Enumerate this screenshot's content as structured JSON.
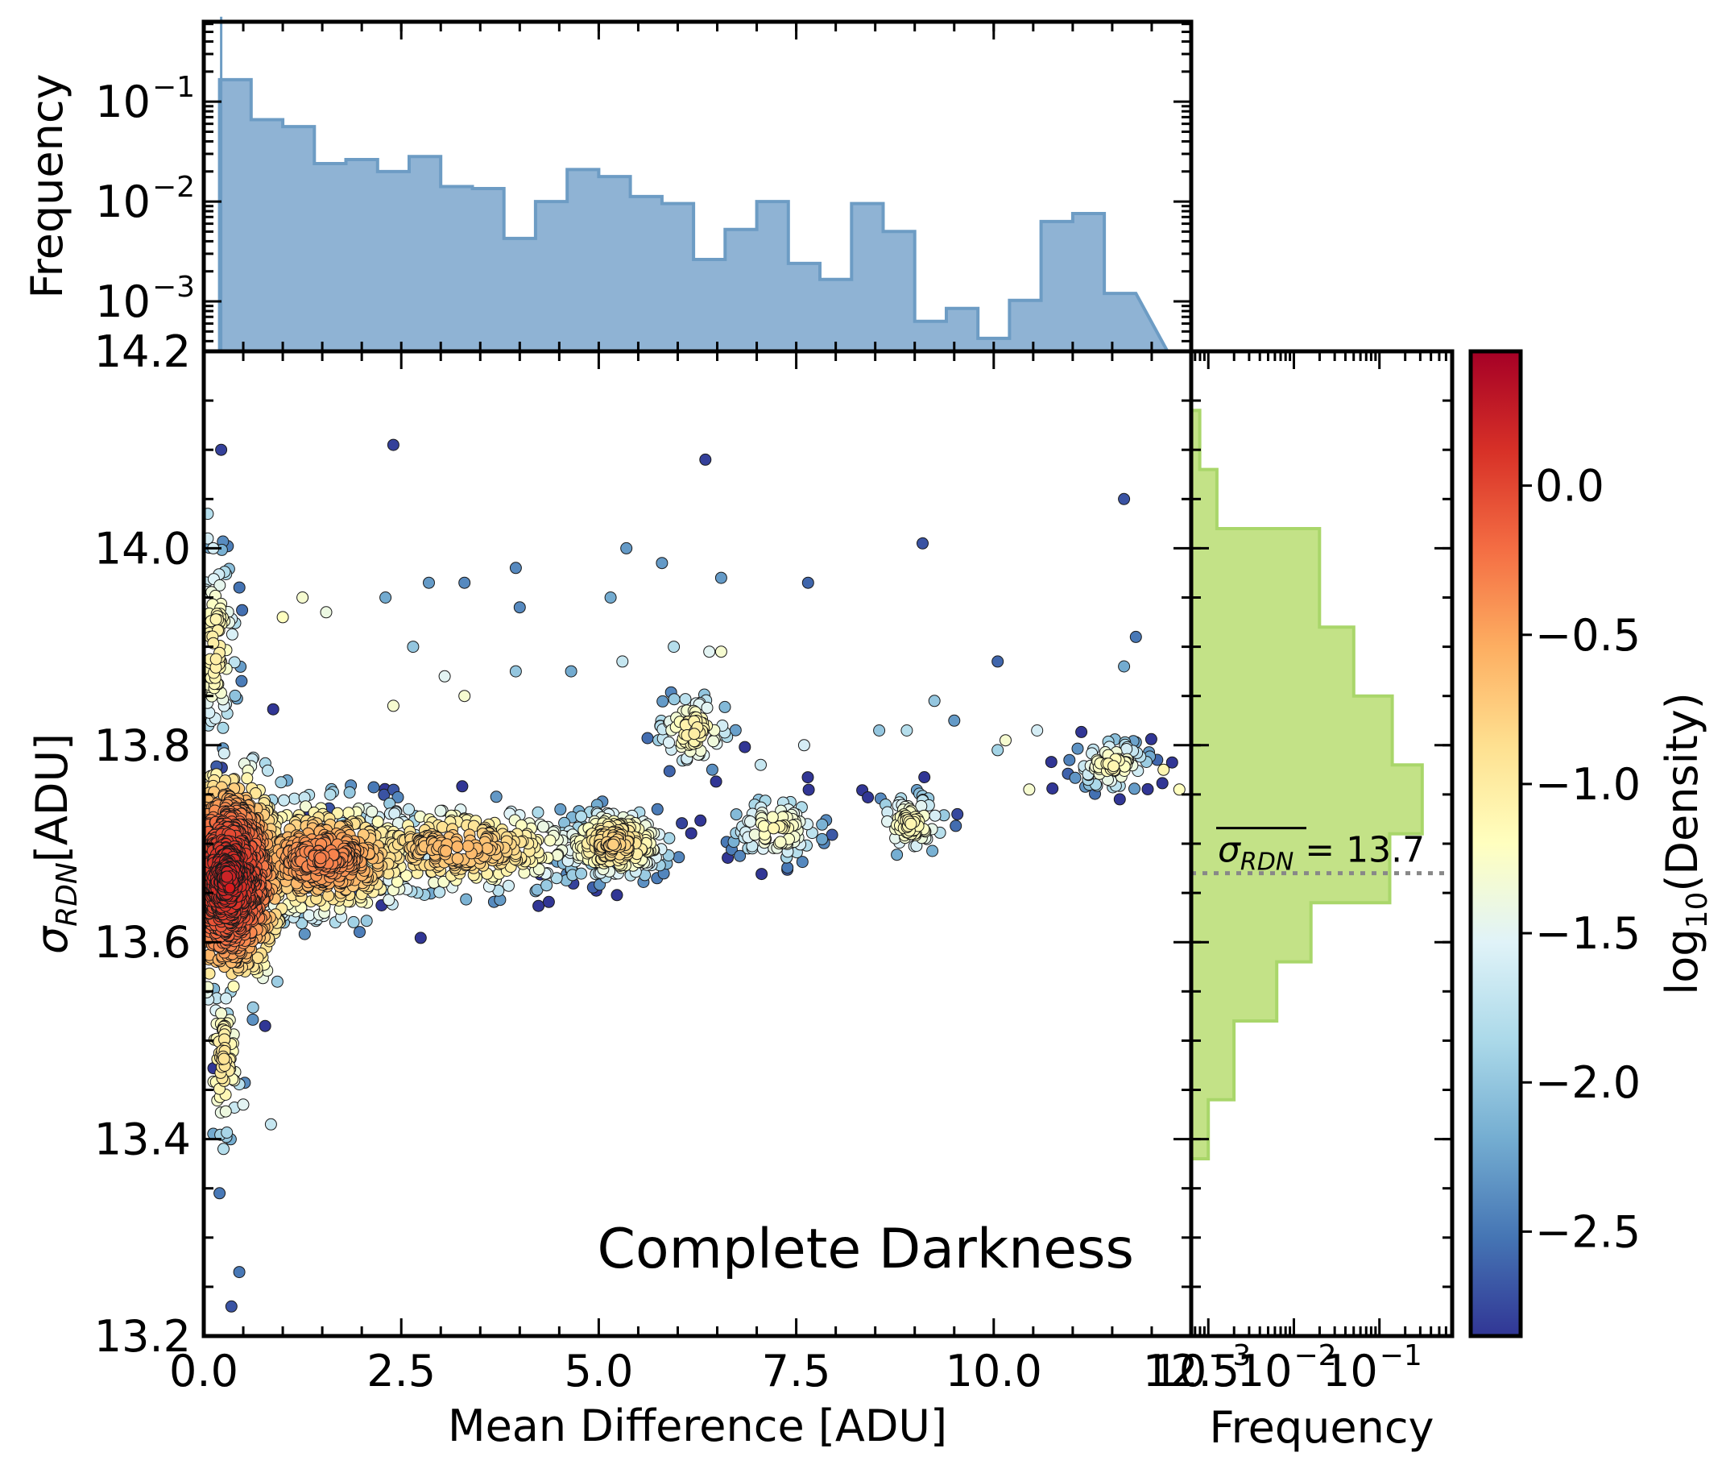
{
  "chart_data": [
    {
      "name": "main-scatter",
      "type": "scatter",
      "xlabel": "Mean Difference [ADU]",
      "ylabel_main": "σ",
      "ylabel_sub": "RDN",
      "ylabel_unit": "[ADU]",
      "xlim": [
        0,
        12.5
      ],
      "ylim": [
        13.2,
        14.2
      ],
      "xticks": [
        0.0,
        2.5,
        5.0,
        7.5,
        10.0,
        12.5
      ],
      "xticklabels": [
        "0.0",
        "2.5",
        "5.0",
        "7.5",
        "10.0",
        "12.5"
      ],
      "yticks": [
        13.2,
        13.4,
        13.6,
        13.8,
        14.0,
        14.2
      ],
      "yticklabels": [
        "13.2",
        "13.4",
        "13.6",
        "13.8",
        "14.0",
        "14.2"
      ],
      "annotation": "Complete Darkness",
      "color_by": "log10(Density)",
      "clusters": [
        {
          "x": 0.3,
          "y": 13.665,
          "sx": 0.35,
          "sy": 0.05,
          "n": 1100,
          "density": 0.2
        },
        {
          "x": 1.5,
          "y": 13.685,
          "sx": 0.6,
          "sy": 0.028,
          "n": 500,
          "density": -0.3
        },
        {
          "x": 3.2,
          "y": 13.695,
          "sx": 0.8,
          "sy": 0.022,
          "n": 350,
          "density": -0.6
        },
        {
          "x": 5.2,
          "y": 13.7,
          "sx": 0.35,
          "sy": 0.018,
          "n": 220,
          "density": -0.75
        },
        {
          "x": 6.2,
          "y": 13.815,
          "sx": 0.25,
          "sy": 0.02,
          "n": 80,
          "density": -1.0
        },
        {
          "x": 7.25,
          "y": 13.715,
          "sx": 0.3,
          "sy": 0.018,
          "n": 90,
          "density": -1.1
        },
        {
          "x": 8.95,
          "y": 13.72,
          "sx": 0.25,
          "sy": 0.017,
          "n": 80,
          "density": -1.1
        },
        {
          "x": 11.5,
          "y": 13.78,
          "sx": 0.25,
          "sy": 0.014,
          "n": 80,
          "density": -1.1
        },
        {
          "x": 0.15,
          "y": 13.9,
          "sx": 0.15,
          "sy": 0.05,
          "n": 110,
          "density": -1.0
        },
        {
          "x": 0.25,
          "y": 13.48,
          "sx": 0.12,
          "sy": 0.04,
          "n": 70,
          "density": -0.9
        }
      ],
      "outliers": [
        [
          0.22,
          14.1,
          -2.8
        ],
        [
          2.4,
          14.105,
          -2.8
        ],
        [
          6.35,
          14.09,
          -2.8
        ],
        [
          11.65,
          14.05,
          -2.7
        ],
        [
          9.1,
          14.005,
          -2.7
        ],
        [
          5.35,
          14.0,
          -2.3
        ],
        [
          5.8,
          13.985,
          -2.3
        ],
        [
          3.95,
          13.98,
          -2.4
        ],
        [
          6.55,
          13.97,
          -2.3
        ],
        [
          7.65,
          13.965,
          -2.6
        ],
        [
          2.85,
          13.965,
          -2.3
        ],
        [
          3.3,
          13.965,
          -2.4
        ],
        [
          2.3,
          13.95,
          -2.2
        ],
        [
          5.15,
          13.95,
          -2.2
        ],
        [
          4.0,
          13.94,
          -2.4
        ],
        [
          11.8,
          13.91,
          -2.5
        ],
        [
          10.05,
          13.885,
          -2.6
        ],
        [
          11.65,
          13.88,
          -2.2
        ],
        [
          2.65,
          13.9,
          -2.0
        ],
        [
          5.95,
          13.9,
          -1.8
        ],
        [
          5.3,
          13.885,
          -1.7
        ],
        [
          3.95,
          13.875,
          -2.0
        ],
        [
          4.65,
          13.875,
          -2.2
        ],
        [
          9.25,
          13.845,
          -2.0
        ],
        [
          9.5,
          13.825,
          -2.3
        ],
        [
          8.55,
          13.815,
          -2.0
        ],
        [
          8.9,
          13.815,
          -1.8
        ],
        [
          10.55,
          13.815,
          -1.6
        ],
        [
          0.05,
          14.035,
          -1.8
        ],
        [
          0.05,
          14.01,
          -1.6
        ],
        [
          0.12,
          14.0,
          -1.6
        ],
        [
          0.2,
          13.345,
          -2.5
        ],
        [
          0.45,
          13.265,
          -2.5
        ],
        [
          0.35,
          13.23,
          -2.7
        ],
        [
          0.85,
          13.415,
          -1.7
        ],
        [
          0.25,
          13.39,
          -1.8
        ],
        [
          0.5,
          13.435,
          -1.5
        ],
        [
          3.05,
          13.87,
          -1.5
        ],
        [
          3.3,
          13.85,
          -1.3
        ],
        [
          2.4,
          13.84,
          -1.3
        ],
        [
          6.4,
          13.895,
          -1.5
        ],
        [
          6.55,
          13.895,
          -1.3
        ],
        [
          7.6,
          13.8,
          -1.6
        ],
        [
          7.05,
          13.78,
          -1.7
        ],
        [
          10.15,
          13.805,
          -1.3
        ],
        [
          10.05,
          13.795,
          -1.9
        ],
        [
          10.45,
          13.755,
          -1.3
        ],
        [
          12.35,
          13.755,
          -1.2
        ],
        [
          12.15,
          13.775,
          -1.1
        ],
        [
          1.55,
          13.935,
          -1.4
        ],
        [
          1.25,
          13.95,
          -1.3
        ],
        [
          1.0,
          13.93,
          -1.2
        ]
      ]
    },
    {
      "name": "top-histogram",
      "type": "histogram",
      "ylabel": "Frequency",
      "yscale": "log",
      "xlim": [
        0,
        12.5
      ],
      "ylim_log10": [
        -3.5,
        -0.2
      ],
      "yticklabels": [
        "10",
        "10",
        "10"
      ],
      "ytick_exponents": [
        "−1",
        "−2",
        "−3"
      ],
      "ytick_values_log10": [
        -1,
        -2,
        -3
      ],
      "bin_edges": [
        0.2,
        0.6,
        1.0,
        1.4,
        1.8,
        2.2,
        2.6,
        3.0,
        3.4,
        3.8,
        4.2,
        4.6,
        5.0,
        5.4,
        5.8,
        6.2,
        6.6,
        7.0,
        7.4,
        7.8,
        8.2,
        8.6,
        9.0,
        9.4,
        9.8,
        10.2,
        10.6,
        11.0,
        11.4,
        11.8,
        12.2
      ],
      "values_log10": [
        -0.78,
        -1.18,
        -1.25,
        -1.62,
        -1.58,
        -1.7,
        -1.55,
        -1.85,
        -1.87,
        -2.37,
        -2.0,
        -1.68,
        -1.75,
        -1.95,
        -2.02,
        -2.58,
        -2.28,
        -2.0,
        -2.62,
        -2.78,
        -2.02,
        -2.3,
        -3.2,
        -3.07,
        -3.37,
        -2.99,
        -2.2,
        -2.12,
        -2.92
      ],
      "spike": {
        "x": 0.2,
        "value_log10": -0.15
      },
      "fill": "#8fb3d4",
      "edge": "#6d9cc4"
    },
    {
      "name": "right-histogram",
      "type": "histogram",
      "orientation": "horizontal",
      "xlabel": "Frequency",
      "xscale": "log",
      "xlim_log10": [
        -3.2,
        -0.15
      ],
      "xticklabels": [
        "10",
        "10",
        "10"
      ],
      "xtick_exponents": [
        "−3",
        "−2",
        "−1"
      ],
      "xtick_values_log10": [
        -3,
        -2,
        -1
      ],
      "ylim": [
        13.2,
        14.2
      ],
      "bin_edges": [
        13.38,
        13.44,
        13.52,
        13.58,
        13.64,
        13.71,
        13.78,
        13.85,
        13.92,
        14.02,
        14.08,
        14.14
      ],
      "values_log10": [
        -3.0,
        -2.7,
        -2.2,
        -1.8,
        -0.88,
        -0.5,
        -0.85,
        -1.3,
        -1.7,
        -2.9,
        -3.1
      ],
      "mean_line": {
        "value": 13.67,
        "label_main": "σ",
        "label_sub": "RDN",
        "label_value": " = 13.7"
      },
      "fill": "#c3e287",
      "edge": "#a9d66a"
    },
    {
      "name": "colorbar",
      "type": "colorbar",
      "label_prefix": "log",
      "label_sub": "10",
      "label_suffix": "(Density)",
      "range": [
        -2.85,
        0.45
      ],
      "ticks": [
        0.0,
        -0.5,
        -1.0,
        -1.5,
        -2.0,
        -2.5
      ],
      "ticklabels": [
        "0.0",
        "−0.5",
        "−1.0",
        "−1.5",
        "−2.0",
        "−2.5"
      ]
    }
  ]
}
